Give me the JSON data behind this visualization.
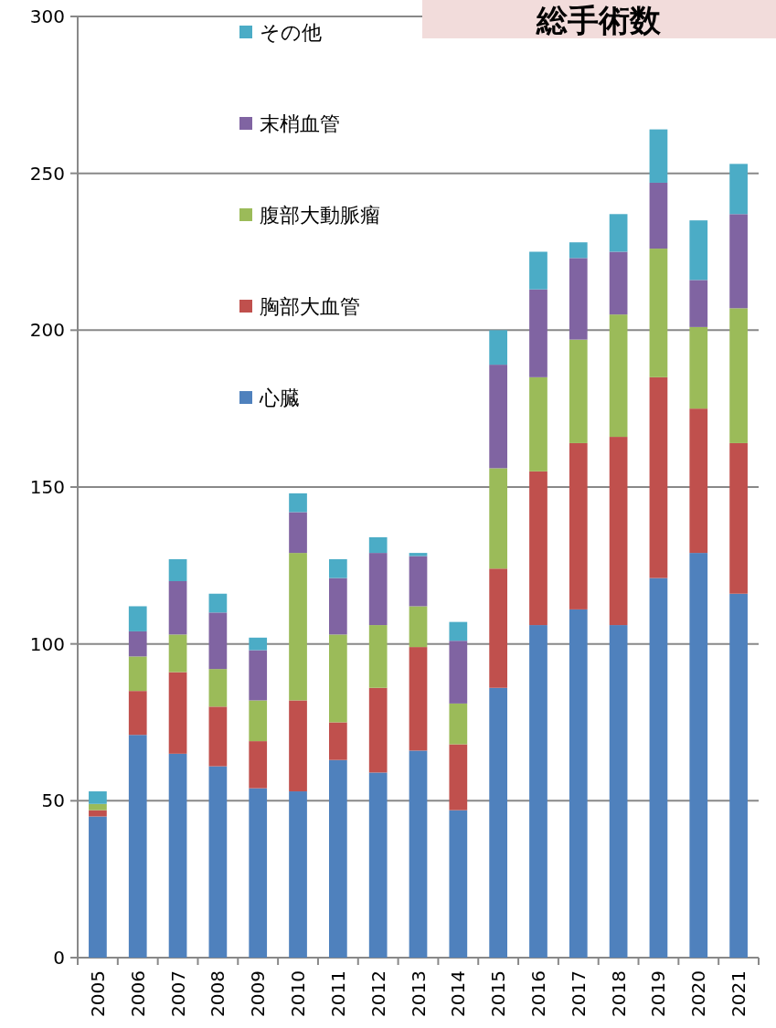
{
  "chart_data": {
    "type": "bar",
    "title": "総手術数",
    "stacked": true,
    "categories": [
      "2005",
      "2006",
      "2007",
      "2008",
      "2009",
      "2010",
      "2011",
      "2012",
      "2013",
      "2014",
      "2015",
      "2016",
      "2017",
      "2018",
      "2019",
      "2020",
      "2021"
    ],
    "series": [
      {
        "name": "心臓",
        "color": "#4f81bd",
        "values": [
          45,
          71,
          65,
          61,
          54,
          53,
          63,
          59,
          66,
          47,
          86,
          106,
          111,
          106,
          121,
          129,
          116
        ]
      },
      {
        "name": "胸部大血管",
        "color": "#c0504d",
        "values": [
          2,
          14,
          26,
          19,
          15,
          29,
          12,
          27,
          33,
          21,
          38,
          49,
          53,
          60,
          64,
          46,
          48
        ]
      },
      {
        "name": "腹部大動脈瘤",
        "color": "#9bbb59",
        "values": [
          2,
          11,
          12,
          12,
          13,
          47,
          28,
          20,
          13,
          13,
          32,
          30,
          33,
          39,
          41,
          26,
          43
        ]
      },
      {
        "name": "末梢血管",
        "color": "#8064a2",
        "values": [
          0,
          8,
          17,
          18,
          16,
          13,
          18,
          23,
          16,
          20,
          33,
          28,
          26,
          20,
          21,
          15,
          30
        ]
      },
      {
        "name": "その他",
        "color": "#4bacc6",
        "values": [
          4,
          8,
          7,
          6,
          4,
          6,
          6,
          5,
          1,
          6,
          11,
          12,
          5,
          12,
          17,
          19,
          16
        ]
      }
    ],
    "ylim": [
      0,
      300
    ],
    "yticks": [
      0,
      50,
      100,
      150,
      200,
      250,
      300
    ],
    "grid": "y",
    "legend": "top left"
  }
}
